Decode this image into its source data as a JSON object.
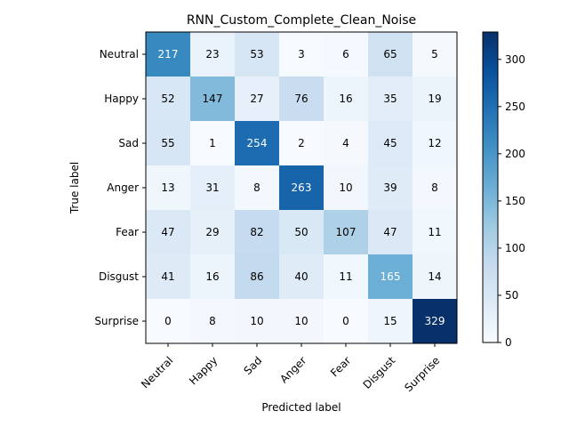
{
  "chart_data": {
    "type": "heatmap",
    "title": "RNN_Custom_Complete_Clean_Noise",
    "xlabel": "Predicted label",
    "ylabel": "True label",
    "x_categories": [
      "Neutral",
      "Happy",
      "Sad",
      "Anger",
      "Fear",
      "Disgust",
      "Surprise"
    ],
    "y_categories": [
      "Neutral",
      "Happy",
      "Sad",
      "Anger",
      "Fear",
      "Disgust",
      "Surprise"
    ],
    "values": [
      [
        217,
        23,
        53,
        3,
        6,
        65,
        5
      ],
      [
        52,
        147,
        27,
        76,
        16,
        35,
        19
      ],
      [
        55,
        1,
        254,
        2,
        4,
        45,
        12
      ],
      [
        13,
        31,
        8,
        263,
        10,
        39,
        8
      ],
      [
        47,
        29,
        82,
        50,
        107,
        47,
        11
      ],
      [
        41,
        16,
        86,
        40,
        11,
        165,
        14
      ],
      [
        0,
        8,
        10,
        10,
        0,
        15,
        329
      ]
    ],
    "colormap": "Blues",
    "color_range": [
      0,
      329
    ],
    "colorbar_ticks": [
      0,
      50,
      100,
      150,
      200,
      250,
      300
    ],
    "grid": false
  }
}
